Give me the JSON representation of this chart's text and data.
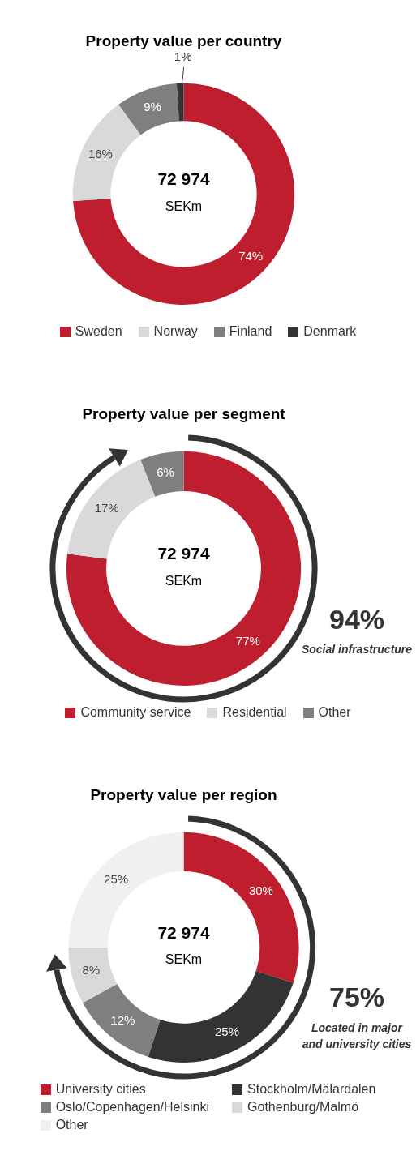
{
  "chart_data": [
    {
      "type": "donut",
      "title": "Property value per country",
      "categories": [
        "Sweden",
        "Norway",
        "Finland",
        "Denmark"
      ],
      "values": [
        74,
        16,
        9,
        1
      ],
      "value_labels": [
        "74%",
        "16%",
        "9%",
        "1%"
      ],
      "colors": [
        "#be1e2d",
        "#d9d9d9",
        "#7f7f7f",
        "#333333"
      ],
      "legend": "bottom",
      "annotations": [
        "72 974",
        "SEKm"
      ]
    },
    {
      "type": "donut",
      "title": "Property value per segment",
      "categories": [
        "Community service",
        "Residential",
        "Other"
      ],
      "values": [
        77,
        17,
        6
      ],
      "value_labels": [
        "77%",
        "17%",
        "6%"
      ],
      "colors": [
        "#be1e2d",
        "#d9d9d9",
        "#7f7f7f"
      ],
      "legend": "bottom",
      "annotations": [
        "72 974",
        "SEKm",
        "94%",
        "Social infrastructure"
      ]
    },
    {
      "type": "donut",
      "title": "Property value per region",
      "categories": [
        "University cities",
        "Stockholm/Mälardalen",
        "Oslo/Copenhagen/Helsinki",
        "Gothenburg/Malmö",
        "Other"
      ],
      "values": [
        30,
        25,
        12,
        8,
        25
      ],
      "value_labels": [
        "30%",
        "25%",
        "12%",
        "8%",
        "25%"
      ],
      "colors": [
        "#be1e2d",
        "#333333",
        "#7f7f7f",
        "#d9d9d9",
        "#f0f0f0"
      ],
      "legend": "bottom",
      "annotations": [
        "72 974",
        "SEKm",
        "75%",
        "Located in major and university cities"
      ]
    }
  ]
}
